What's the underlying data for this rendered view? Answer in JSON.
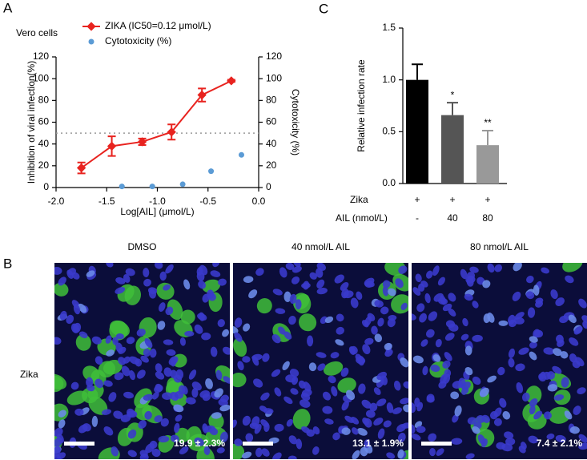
{
  "panels": [
    "A",
    "B",
    "C"
  ],
  "chart_data": [
    {
      "type": "line",
      "legend_title": "Vero cells",
      "x_label": "Log[AIL] (μmol/L)",
      "y_label": "Inhibition of viral infection(%)",
      "y2_label": "Cytotoxicity (%)",
      "xlim": [
        -2,
        0
      ],
      "xticks": [
        {
          "value": -2,
          "label": "-2.0"
        },
        -1.5,
        {
          "value": -1,
          "label": "-1.0"
        },
        -0.5,
        {
          "value": 0,
          "label": "0.0"
        }
      ],
      "ylim": [
        0,
        120
      ],
      "yticks": [
        0,
        20,
        40,
        60,
        80,
        100,
        120
      ],
      "y2lim": [
        0,
        120
      ],
      "y2ticks": [
        0,
        20,
        40,
        60,
        80,
        100,
        120
      ],
      "reference_line": 50,
      "series": [
        {
          "name": "ZIKA (IC50=0.12 μmol/L)",
          "type": "line",
          "color": "#e8231f",
          "x": [
            -1.75,
            -1.45,
            -1.15,
            -0.86,
            -0.56,
            -0.27
          ],
          "values": [
            18,
            38,
            42,
            51,
            85,
            98
          ],
          "errors": [
            5,
            9,
            3,
            7,
            6,
            1
          ]
        },
        {
          "name": "Cytotoxicity (%)",
          "type": "scatter",
          "color": "#5b9bd5",
          "axis": "y2",
          "x": [
            -1.35,
            -1.05,
            -0.75,
            -0.47,
            -0.17
          ],
          "values": [
            1,
            1,
            3,
            15,
            30
          ]
        }
      ]
    },
    {
      "type": "bar",
      "y_label": "Relative infection rate",
      "ylim": [
        0,
        1.5
      ],
      "yticks": [
        {
          "value": 0,
          "label": "0.0"
        },
        0.5,
        {
          "value": 1,
          "label": "1.0"
        },
        1.5
      ],
      "values": [
        1.0,
        0.66,
        0.37
      ],
      "errors": [
        0.15,
        0.12,
        0.14
      ],
      "colors": [
        "#000000",
        "#555555",
        "#999999"
      ],
      "significance": [
        null,
        "*",
        "**"
      ],
      "table_rows": [
        {
          "label": "Zika",
          "cells": [
            "+",
            "+",
            "+"
          ]
        },
        {
          "label": "AIL (nmol/L)",
          "cells": [
            "-",
            "40",
            "80"
          ]
        }
      ]
    }
  ],
  "microscopy": {
    "row_label": "Zika",
    "images": [
      {
        "title": "DMSO",
        "annotation": "19.9 ± 2.3%"
      },
      {
        "title": "40 nmol/L AIL",
        "annotation": "13.1 ± 1.9%"
      },
      {
        "title": "80 nmol/L AIL",
        "annotation": "7.4 ± 2.1%"
      }
    ]
  }
}
